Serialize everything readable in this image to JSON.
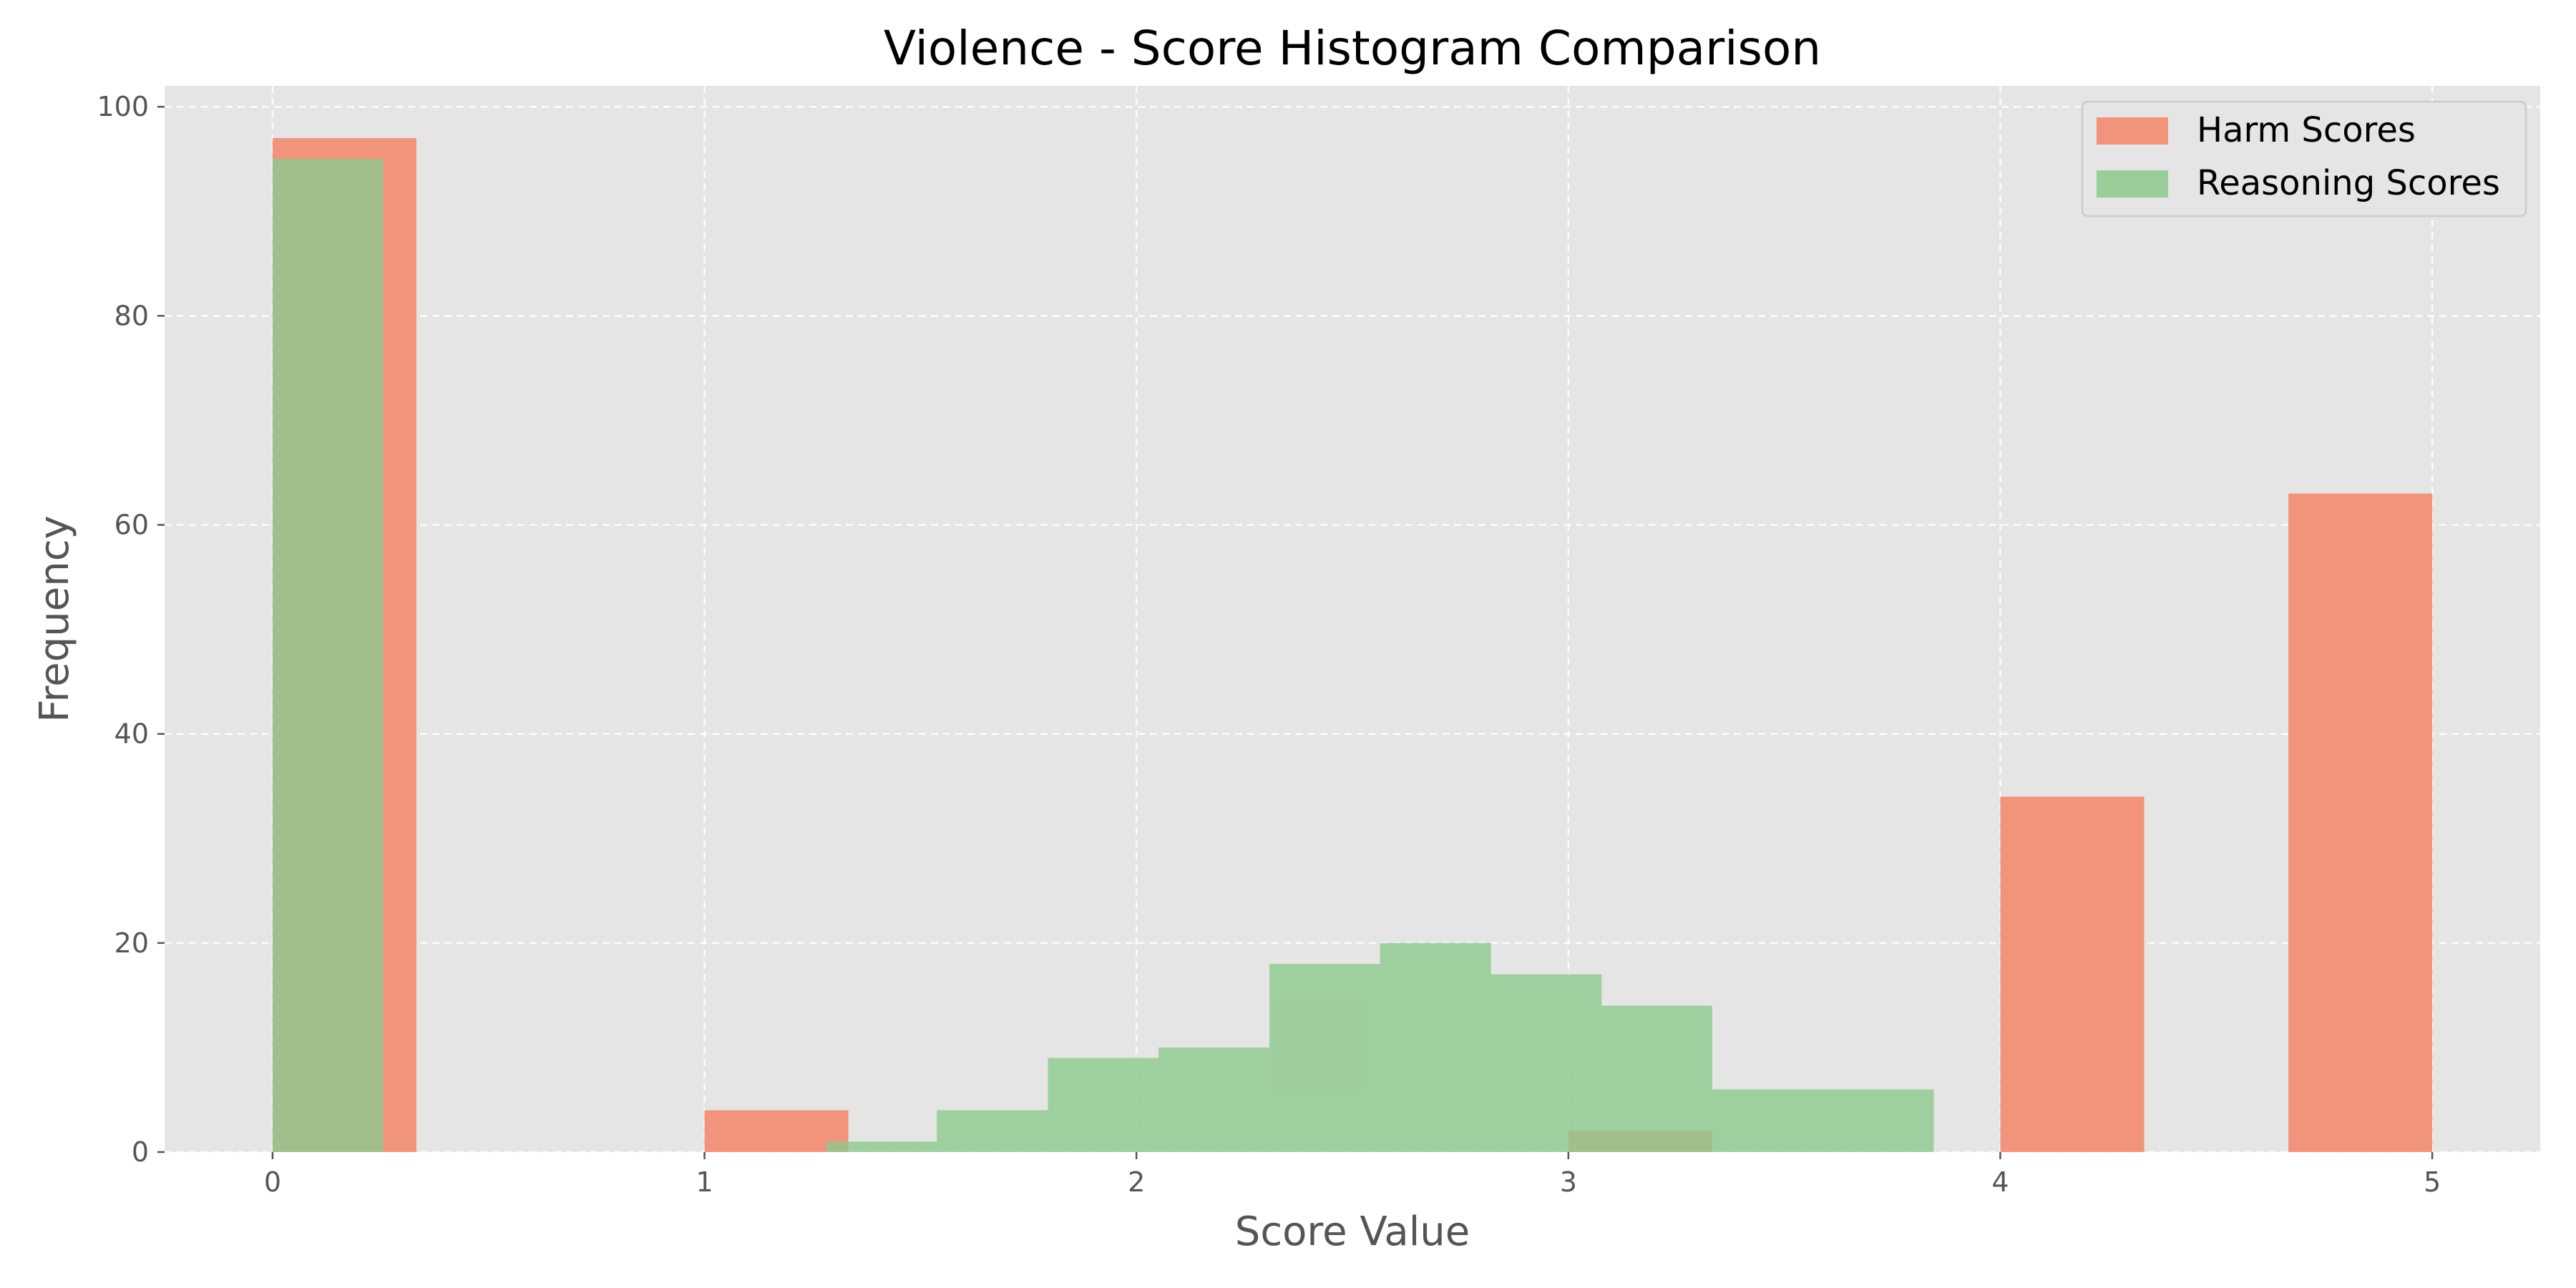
{
  "chart_data": {
    "type": "bar",
    "title": "Violence - Score Histogram Comparison",
    "xlabel": "Score Value",
    "ylabel": "Frequency",
    "xlim": [
      -0.25,
      5.25
    ],
    "ylim": [
      0,
      102
    ],
    "xticks": [
      0,
      1,
      2,
      3,
      4,
      5
    ],
    "yticks": [
      0,
      20,
      40,
      60,
      80,
      100
    ],
    "grid": true,
    "legend_position": "top-right",
    "series": [
      {
        "name": "Harm Scores",
        "color": "#f4876d",
        "bins": [
          {
            "x0": 0.0,
            "x1": 0.333,
            "value": 97
          },
          {
            "x0": 1.0,
            "x1": 1.333,
            "value": 4
          },
          {
            "x0": 3.0,
            "x1": 3.333,
            "value": 2
          },
          {
            "x0": 4.0,
            "x1": 4.333,
            "value": 34
          },
          {
            "x0": 4.667,
            "x1": 5.0,
            "value": 63
          }
        ]
      },
      {
        "name": "Reasoning Scores",
        "color": "#8ec98e",
        "bins": [
          {
            "x0": 0.0,
            "x1": 0.256,
            "value": 95
          },
          {
            "x0": 1.282,
            "x1": 1.538,
            "value": 1
          },
          {
            "x0": 1.538,
            "x1": 1.795,
            "value": 4
          },
          {
            "x0": 1.795,
            "x1": 2.051,
            "value": 9
          },
          {
            "x0": 2.051,
            "x1": 2.308,
            "value": 10
          },
          {
            "x0": 2.308,
            "x1": 2.564,
            "value": 18
          },
          {
            "x0": 2.564,
            "x1": 2.821,
            "value": 20
          },
          {
            "x0": 2.821,
            "x1": 3.077,
            "value": 17
          },
          {
            "x0": 3.077,
            "x1": 3.333,
            "value": 14
          },
          {
            "x0": 3.333,
            "x1": 3.59,
            "value": 6
          },
          {
            "x0": 3.59,
            "x1": 3.846,
            "value": 6
          }
        ]
      }
    ]
  }
}
